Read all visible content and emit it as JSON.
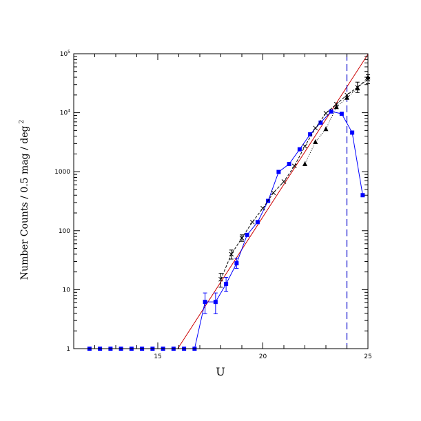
{
  "chart_data": {
    "type": "scatter",
    "xlabel": "U",
    "ylabel": "Number Counts / 0.5 mag / deg",
    "ylabel_sup": "2",
    "xlim": [
      11,
      25
    ],
    "ylim": [
      1,
      100000
    ],
    "yscale": "log",
    "grid": false,
    "x_ticks": [
      {
        "value": 15,
        "label": "15"
      },
      {
        "value": 20,
        "label": "20"
      },
      {
        "value": 25,
        "label": "25"
      }
    ],
    "y_ticks": [
      {
        "value": 1,
        "label": "1",
        "sup": ""
      },
      {
        "value": 10,
        "label": "10",
        "sup": ""
      },
      {
        "value": 100,
        "label": "100",
        "sup": ""
      },
      {
        "value": 1000,
        "label": "1000",
        "sup": ""
      },
      {
        "value": 10000,
        "label": "10",
        "sup": "4"
      },
      {
        "value": 100000,
        "label": "10",
        "sup": "5"
      }
    ],
    "series": [
      {
        "style": "blue-squares",
        "color": "#0000ff",
        "points": [
          {
            "x": 11.75,
            "y": 1
          },
          {
            "x": 12.25,
            "y": 1
          },
          {
            "x": 12.75,
            "y": 1
          },
          {
            "x": 13.25,
            "y": 1
          },
          {
            "x": 13.75,
            "y": 1
          },
          {
            "x": 14.25,
            "y": 1
          },
          {
            "x": 14.75,
            "y": 1
          },
          {
            "x": 15.25,
            "y": 1
          },
          {
            "x": 15.75,
            "y": 1
          },
          {
            "x": 16.25,
            "y": 1
          },
          {
            "x": 16.75,
            "y": 1
          },
          {
            "x": 17.25,
            "y": 6.2,
            "lo": 3.9,
            "hi": 8.8
          },
          {
            "x": 17.75,
            "y": 6.2,
            "lo": 3.9,
            "hi": 8.8
          },
          {
            "x": 18.25,
            "y": 12.5,
            "lo": 9.3,
            "hi": 16.2
          },
          {
            "x": 18.75,
            "y": 28,
            "lo": 23,
            "hi": 34
          },
          {
            "x": 19.25,
            "y": 85
          },
          {
            "x": 19.75,
            "y": 140
          },
          {
            "x": 20.25,
            "y": 320
          },
          {
            "x": 20.75,
            "y": 990
          },
          {
            "x": 21.25,
            "y": 1350
          },
          {
            "x": 21.75,
            "y": 2400
          },
          {
            "x": 22.25,
            "y": 4300
          },
          {
            "x": 22.75,
            "y": 6800
          },
          {
            "x": 23.25,
            "y": 10500
          },
          {
            "x": 23.75,
            "y": 9600
          },
          {
            "x": 24.25,
            "y": 4600
          },
          {
            "x": 24.75,
            "y": 400
          }
        ]
      },
      {
        "style": "crosses-dashed",
        "color": "#000000",
        "points": [
          {
            "x": 18.0,
            "y": 15,
            "lo": 11,
            "hi": 19
          },
          {
            "x": 18.5,
            "y": 40,
            "lo": 33,
            "hi": 47
          },
          {
            "x": 19.0,
            "y": 75,
            "lo": 66,
            "hi": 85
          },
          {
            "x": 19.5,
            "y": 140
          },
          {
            "x": 20.0,
            "y": 240
          },
          {
            "x": 20.5,
            "y": 440
          },
          {
            "x": 21.0,
            "y": 680
          },
          {
            "x": 21.5,
            "y": 1250
          },
          {
            "x": 22.0,
            "y": 2700
          },
          {
            "x": 22.5,
            "y": 5500
          },
          {
            "x": 23.0,
            "y": 9800
          },
          {
            "x": 23.5,
            "y": 14000
          },
          {
            "x": 24.0,
            "y": 20000
          },
          {
            "x": 24.5,
            "y": 27000,
            "lo": 22000,
            "hi": 33000
          },
          {
            "x": 25.0,
            "y": 37000,
            "lo": 31000,
            "hi": 44000
          }
        ]
      },
      {
        "style": "triangles-dotted",
        "color": "#000000",
        "points": [
          {
            "x": 22.0,
            "y": 1350
          },
          {
            "x": 22.5,
            "y": 3200
          },
          {
            "x": 23.0,
            "y": 5300
          },
          {
            "x": 23.5,
            "y": 12500
          },
          {
            "x": 24.0,
            "y": 18000
          },
          {
            "x": 24.5,
            "y": 26000
          },
          {
            "x": 25.0,
            "y": 40000
          }
        ]
      }
    ],
    "model_line": {
      "color": "#cc0000",
      "x": [
        15.95,
        25.0
      ],
      "y": [
        1,
        98000
      ]
    },
    "limit_line": {
      "color": "#0000cc",
      "style": "dashed",
      "x": 24.0
    }
  }
}
